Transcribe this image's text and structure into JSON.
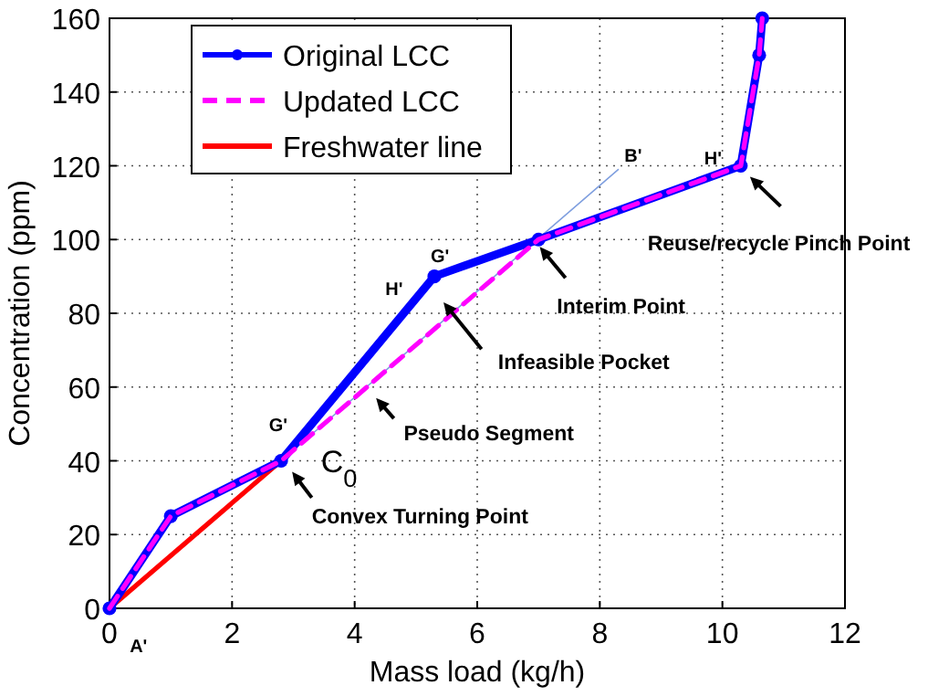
{
  "chart_data": {
    "type": "line",
    "xlabel": "Mass load (kg/h)",
    "ylabel": "Concentration (ppm)",
    "xlim": [
      0,
      12
    ],
    "ylim": [
      0,
      160
    ],
    "xticks": [
      0,
      2,
      4,
      6,
      8,
      10,
      12
    ],
    "yticks": [
      0,
      20,
      40,
      60,
      80,
      100,
      120,
      140,
      160
    ],
    "grid": true,
    "legend": "top left",
    "series": [
      {
        "name": "Original LCC",
        "color": "#0000ff",
        "x": [
          0,
          1,
          2.8,
          5.3,
          7,
          10.3,
          10.6,
          10.65
        ],
        "values": [
          0,
          25,
          40,
          90,
          100,
          120,
          150,
          160
        ],
        "marker": "circle",
        "line_style": "solid"
      },
      {
        "name": "Updated LCC",
        "color": "#ff00ff",
        "x": [
          0,
          1,
          2.8,
          7,
          10.3,
          10.6,
          10.65
        ],
        "values": [
          0,
          25,
          40,
          100,
          120,
          150,
          160
        ],
        "marker": "none",
        "line_style": "dashed"
      },
      {
        "name": "Freshwater line",
        "color": "#ff0000",
        "x": [
          0,
          2.8
        ],
        "values": [
          0,
          40
        ],
        "marker": "none",
        "line_style": "solid"
      },
      {
        "color": "#7f9fdf",
        "x": [
          2.8,
          8.3
        ],
        "values": [
          40,
          119
        ],
        "marker": "none",
        "line_style": "solid"
      }
    ],
    "annotations": [
      "Reuse/recycle Pinch Point",
      "Interim Point",
      "Infeasible Pocket",
      "Pseudo Segment",
      "Convex Turning Point",
      "C$_{0}$",
      "G'",
      {
        "text": "G'",
        "x": 5.3,
        "y": 90
      },
      "H'",
      {
        "text": "H'",
        "x": 10.3,
        "y": 120
      },
      "B'",
      "A'"
    ]
  }
}
